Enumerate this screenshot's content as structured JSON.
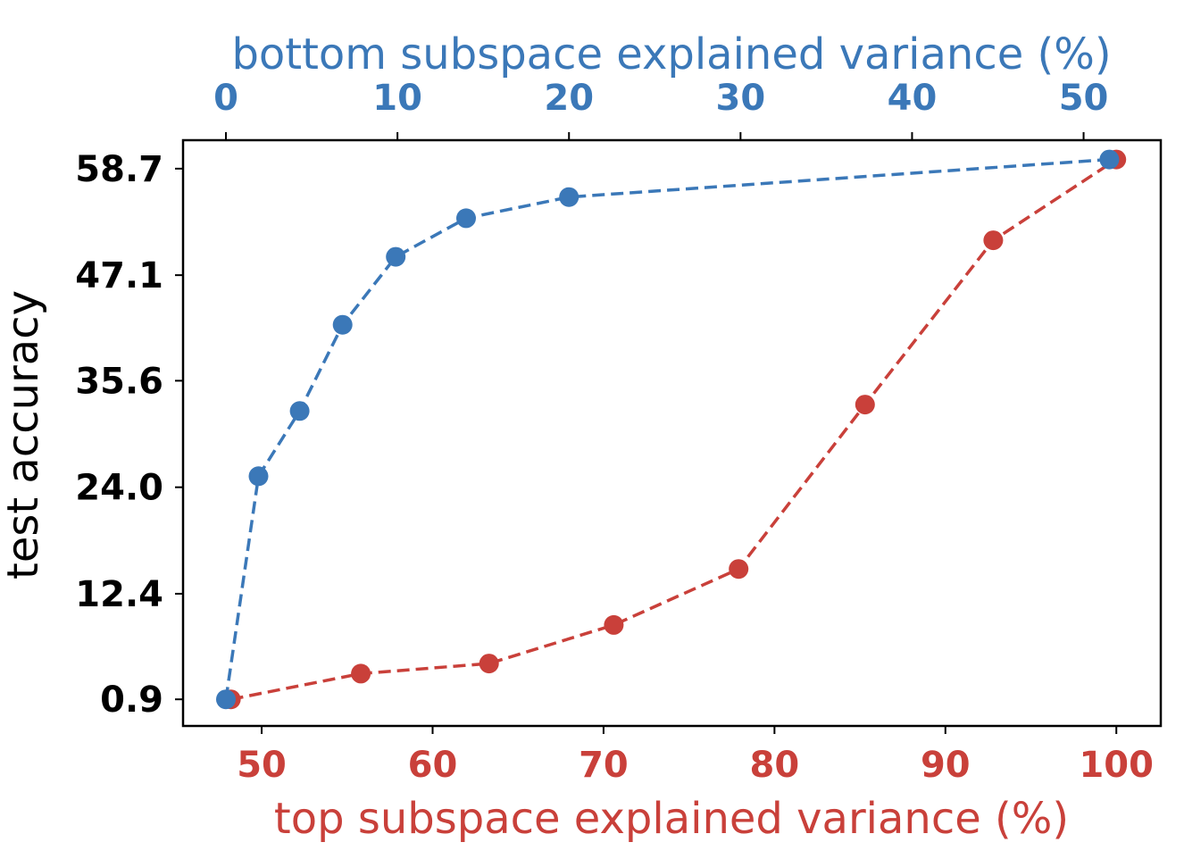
{
  "colors": {
    "top_series": "#c9403a",
    "bottom_series": "#3b78b8",
    "axes": "#000000"
  },
  "chart_data": {
    "type": "line",
    "ylabel": "test accuracy",
    "xlabel_bottom": "top subspace explained variance (%)",
    "xlabel_top": "bottom subspace explained variance (%)",
    "y_ticks": [
      "0.9",
      "12.4",
      "24.0",
      "35.6",
      "47.1",
      "58.7"
    ],
    "y_tick_values": [
      0.9,
      12.4,
      24.0,
      35.6,
      47.1,
      58.7
    ],
    "x_bottom_ticks": [
      "50",
      "60",
      "70",
      "80",
      "90",
      "100"
    ],
    "x_bottom_tick_values": [
      50,
      60,
      70,
      80,
      90,
      100
    ],
    "x_top_ticks": [
      "0",
      "10",
      "20",
      "30",
      "40",
      "50"
    ],
    "x_top_tick_values": [
      0,
      10,
      20,
      30,
      40,
      50
    ],
    "ylim": [
      -2.0,
      61.8
    ],
    "xlim_bottom": [
      45.4,
      102.6
    ],
    "xlim_top": [
      -2.5,
      54.5
    ],
    "grid": false,
    "series": [
      {
        "axis": "bottom",
        "color": "#c9403a",
        "style": "dashed",
        "marker": "circle",
        "x": [
          48.2,
          55.8,
          63.3,
          70.6,
          77.9,
          85.3,
          92.8,
          100.0
        ],
        "y": [
          0.9,
          3.7,
          4.8,
          9.0,
          15.1,
          33.0,
          50.9,
          59.7
        ]
      },
      {
        "axis": "top",
        "color": "#3b78b8",
        "style": "dashed",
        "marker": "circle",
        "x": [
          0.0,
          1.9,
          4.3,
          6.8,
          9.9,
          14.0,
          20.0,
          51.5
        ],
        "y": [
          0.9,
          25.2,
          32.3,
          41.7,
          49.1,
          53.3,
          55.6,
          59.7
        ]
      }
    ]
  }
}
